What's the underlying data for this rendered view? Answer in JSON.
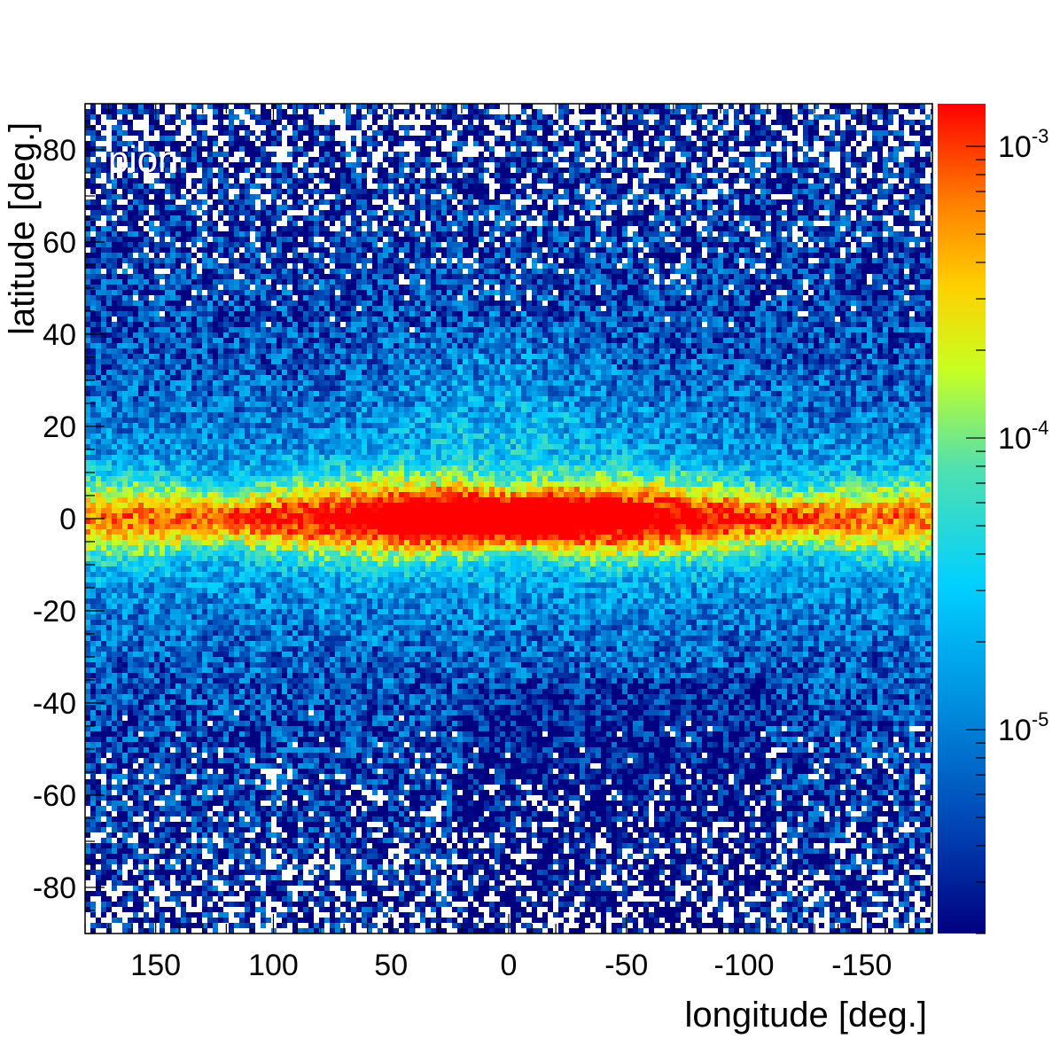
{
  "chart_data": {
    "type": "heatmap",
    "title": "",
    "annotation": "pion",
    "xlabel": "longitude [deg.]",
    "ylabel": "latitude [deg.]",
    "xlim": [
      180,
      -180
    ],
    "ylim": [
      -90,
      90
    ],
    "x_ticks": [
      150,
      100,
      50,
      0,
      -50,
      -100,
      -150
    ],
    "x_tick_labels": [
      "150",
      "100",
      "50",
      "0",
      "-50",
      "-100",
      "-150"
    ],
    "y_ticks": [
      80,
      60,
      40,
      20,
      0,
      -20,
      -40,
      -60,
      -80
    ],
    "y_tick_labels": [
      "80",
      "60",
      "40",
      "20",
      "0",
      "-20",
      "-40",
      "-60",
      "-80"
    ],
    "colorbar": {
      "scale": "log",
      "range": [
        2e-06,
        0.0014
      ],
      "labels": [
        {
          "value": 0.001,
          "base": "10",
          "exp": "-3"
        },
        {
          "value": 0.0001,
          "base": "10",
          "exp": "-4"
        },
        {
          "value": 1e-05,
          "base": "10",
          "exp": "-5"
        }
      ],
      "colormap": [
        "#000080",
        "#0050c8",
        "#00a0f0",
        "#00d8ff",
        "#60e0a0",
        "#d0ff20",
        "#ffd000",
        "#ff8000",
        "#ff2000",
        "#ff0000"
      ]
    },
    "features": {
      "peak_value": 0.0012,
      "disk_latitude": 0,
      "bubble_lobes_longitude": [
        30,
        -30
      ]
    }
  }
}
